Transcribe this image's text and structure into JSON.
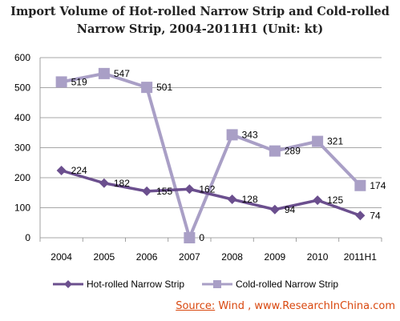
{
  "title_lines": [
    "Import Volume of Hot-rolled Narrow Strip and Cold-rolled",
    "Narrow Strip, 2004-2011H1  (Unit: kt)"
  ],
  "source": {
    "label": "Source:",
    "text": " Wind , www.ResearchInChina.com"
  },
  "chart_data": {
    "type": "line",
    "categories": [
      "2004",
      "2005",
      "2006",
      "2007",
      "2008",
      "2009",
      "2010",
      "2011H1"
    ],
    "ylim": [
      0,
      600
    ],
    "yticks": [
      0,
      100,
      200,
      300,
      400,
      500,
      600
    ],
    "grid": true,
    "legend": "bottom",
    "series": [
      {
        "name": "Hot-rolled Narrow Strip",
        "marker": "diamond",
        "color": "#6b4f8e",
        "values": [
          224,
          182,
          155,
          162,
          128,
          94,
          125,
          74
        ]
      },
      {
        "name": "Cold-rolled Narrow Strip",
        "marker": "square",
        "color": "#a99fc6",
        "values": [
          519,
          547,
          501,
          0,
          343,
          289,
          321,
          174
        ]
      }
    ]
  }
}
